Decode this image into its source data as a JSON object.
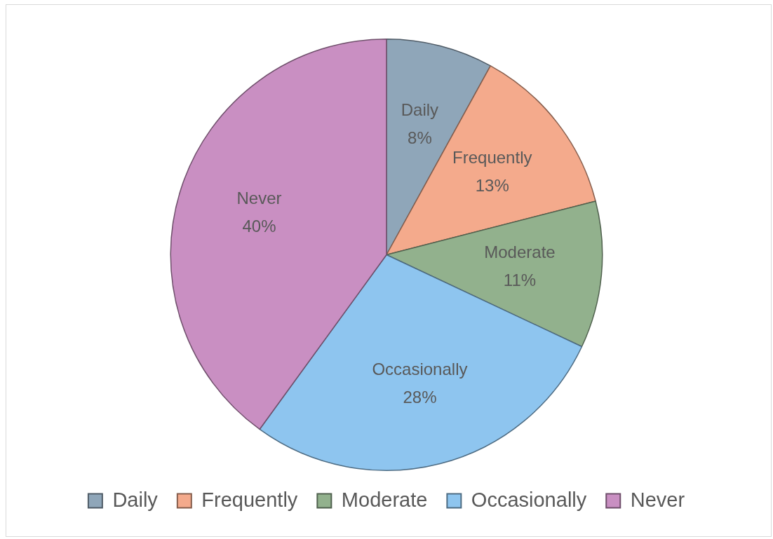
{
  "chart_data": {
    "type": "pie",
    "categories": [
      "Daily",
      "Frequently",
      "Moderate",
      "Occasionally",
      "Never"
    ],
    "values": [
      8,
      13,
      11,
      28,
      40
    ],
    "colors": [
      "#8fa6b9",
      "#f4aa8c",
      "#92b18d",
      "#8ec5ef",
      "#c98fc2"
    ],
    "value_labels": [
      "8%",
      "13%",
      "11%",
      "28%",
      "40%"
    ],
    "legend": "bottom"
  }
}
